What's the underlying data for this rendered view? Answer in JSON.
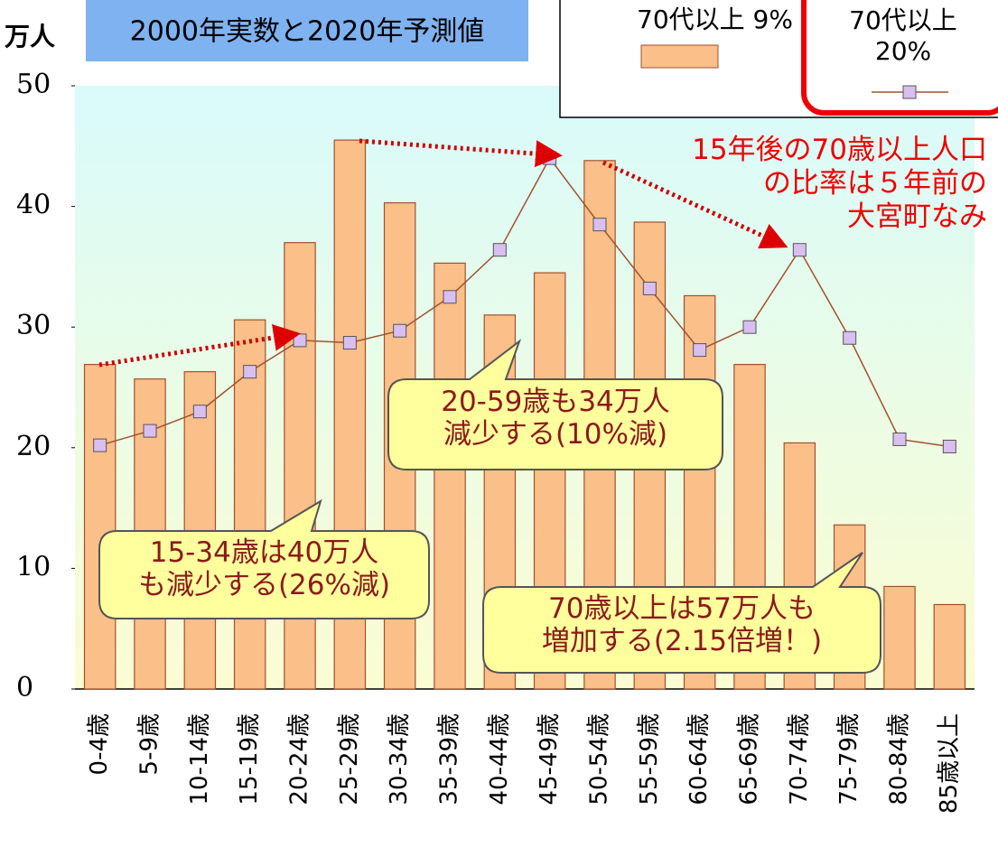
{
  "chart_data": {
    "type": "bar_line",
    "subtitle": "2000年実数と2020年予測値",
    "y_unit": "万人",
    "categories": [
      "0-4歳",
      "5-9歳",
      "10-14歳",
      "15-19歳",
      "20-24歳",
      "25-29歳",
      "30-34歳",
      "35-39歳",
      "40-44歳",
      "45-49歳",
      "50-54歳",
      "55-59歳",
      "60-64歳",
      "65-69歳",
      "70-74歳",
      "75-79歳",
      "80-84歳",
      "85歳以上"
    ],
    "series": [
      {
        "name": "70代以上 9%",
        "kind": "bar",
        "color": "#fbbf8a",
        "values": [
          26.9,
          25.7,
          26.3,
          30.6,
          37.0,
          45.5,
          40.3,
          35.3,
          31.0,
          34.5,
          43.8,
          38.7,
          32.6,
          26.9,
          20.4,
          13.6,
          8.5,
          7.0
        ]
      },
      {
        "name": "70代以上\n20%",
        "kind": "line",
        "color": "#a0522d",
        "values": [
          20.2,
          21.4,
          23.0,
          26.3,
          28.9,
          28.7,
          29.7,
          32.5,
          36.4,
          44.0,
          38.5,
          33.2,
          28.1,
          30.0,
          36.4,
          29.1,
          20.7,
          20.1
        ]
      }
    ],
    "ylim": [
      0,
      50
    ],
    "yticks": [
      0,
      10,
      20,
      30,
      40,
      50
    ],
    "annotations": [
      "15年後の70歳以上人口\nの比率は５年前の\n大宮町なみ",
      "20-59歳も34万人\n減少する(10%減)",
      "15-34歳は40万人\nも減少する(26%減)",
      "70歳以上は57万人も\n増加する(2.15倍増！)"
    ]
  }
}
